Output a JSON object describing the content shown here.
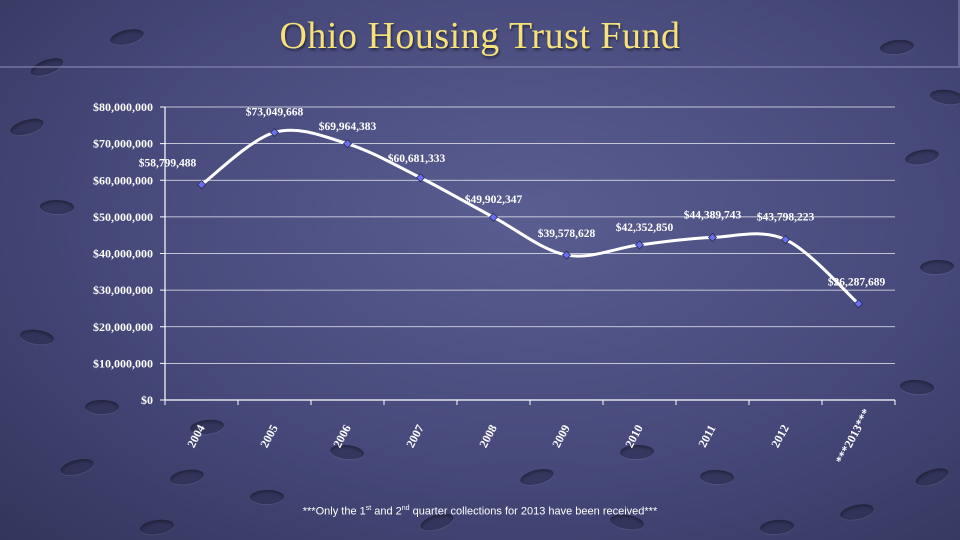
{
  "slide": {
    "title": "Ohio Housing Trust Fund",
    "footnote_prefix": "***Only the 1",
    "footnote_sup1": "st",
    "footnote_mid": " and 2",
    "footnote_sup2": "nd",
    "footnote_suffix": " quarter collections for 2013 have been received***"
  },
  "colors": {
    "title": "#f6e27a",
    "line": "#ffffff",
    "marker": "#6a6ef0",
    "grid": "#ffffff"
  },
  "chart_data": {
    "type": "line",
    "title": "",
    "xlabel": "",
    "ylabel": "",
    "ylim": [
      0,
      80000000
    ],
    "yticks": [
      0,
      10000000,
      20000000,
      30000000,
      40000000,
      50000000,
      60000000,
      70000000,
      80000000
    ],
    "ytick_labels": [
      "$0",
      "$10,000,000",
      "$20,000,000",
      "$30,000,000",
      "$40,000,000",
      "$50,000,000",
      "$60,000,000",
      "$70,000,000",
      "$80,000,000"
    ],
    "categories": [
      "2004",
      "2005",
      "2006",
      "2007",
      "2008",
      "2009",
      "2010",
      "2011",
      "2012",
      "***2013***"
    ],
    "series": [
      {
        "values": [
          58799488,
          73049668,
          69964383,
          60681333,
          49902347,
          39578628,
          42352850,
          44389743,
          43798223,
          26287689
        ],
        "labels": [
          "$58,799,488",
          "$73,049,668",
          "$69,964,383",
          "$60,681,333",
          "$49,902,347",
          "$39,578,628",
          "$42,352,850",
          "$44,389,743",
          "$43,798,223",
          "$26,287,689"
        ]
      }
    ],
    "grid": true,
    "legend": "none"
  }
}
